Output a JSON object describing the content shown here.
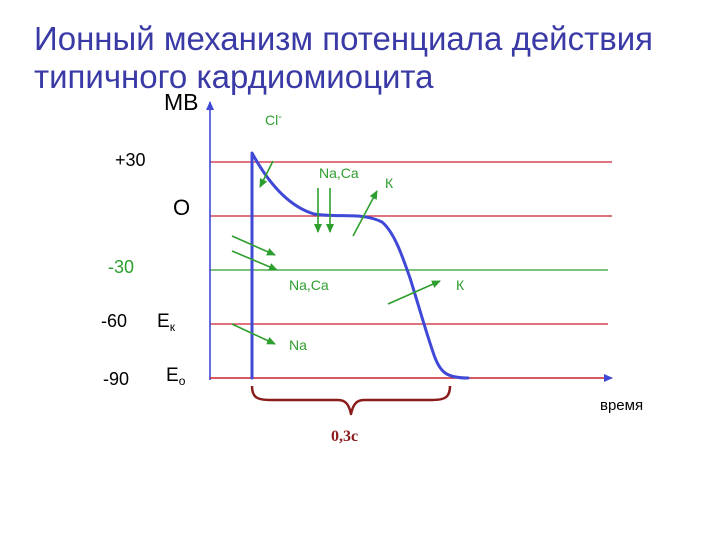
{
  "title": {
    "line1": "Ионный механизм потенциала действия",
    "line2": "типичного кардиомиоцита"
  },
  "axes": {
    "y_unit": "МВ",
    "x_label": "время"
  },
  "levels": [
    {
      "label": "+30",
      "value": 30,
      "color": "#cc2233"
    },
    {
      "label": "О",
      "value": 0,
      "color": "#cc2233"
    },
    {
      "label": "-30",
      "value": -30,
      "color": "#2e9e2e"
    },
    {
      "label": "-60",
      "value": -60,
      "color": "#cc2233"
    },
    {
      "label": "-90",
      "value": -90,
      "color": "#cc2233"
    }
  ],
  "equilibrium": {
    "ek_main": "E",
    "ek_sub": "к",
    "eo_main": "E",
    "eo_sub": "о"
  },
  "ions": {
    "cl": "Cl",
    "cl_sup": "-",
    "naca_top": "Na,Ca",
    "k_top": "К",
    "naca_mid": "Na,Ca",
    "k_right": "К",
    "na_low": "Na"
  },
  "duration": "0,3с",
  "colors": {
    "title": "#3a3aa6",
    "curve": "#3f49d6",
    "axis": "#3f49d6",
    "red_line": "#cc2233",
    "green": "#2e9e2e",
    "brace": "#8a1c1c"
  }
}
